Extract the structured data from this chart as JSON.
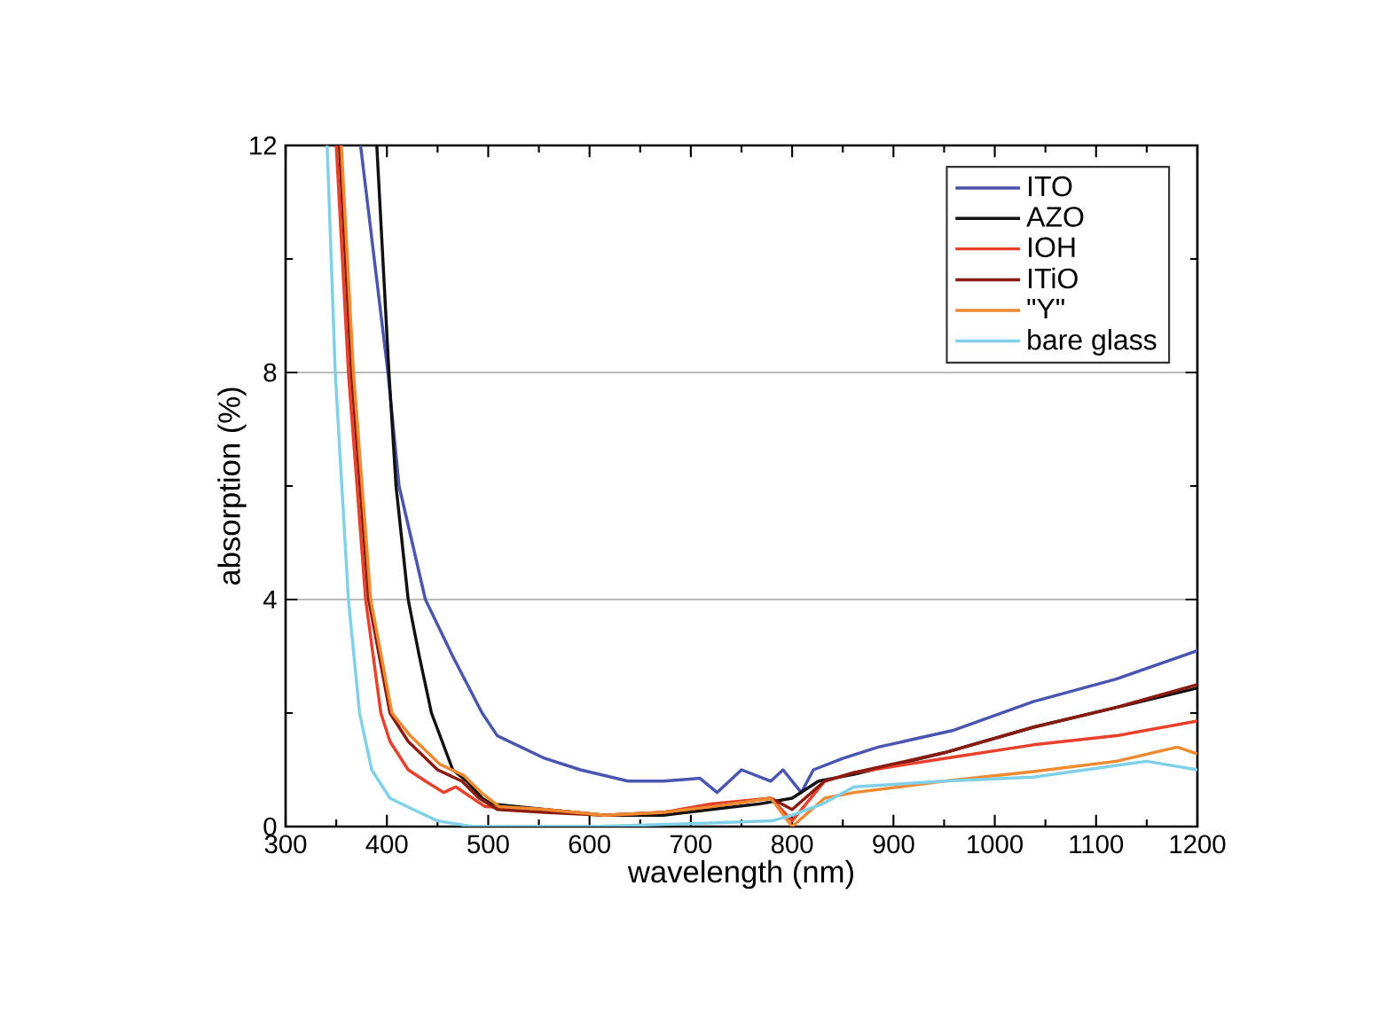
{
  "chart_data": {
    "type": "line",
    "xlabel": "wavelength (nm)",
    "ylabel": "absorption (%)",
    "xlim": [
      300,
      1200
    ],
    "ylim": [
      0,
      12
    ],
    "xticks": [
      300,
      400,
      500,
      600,
      700,
      800,
      900,
      1000,
      1100,
      1200
    ],
    "yticks": [
      0,
      4,
      8,
      12
    ],
    "grid": "y",
    "legend": "top right",
    "line_style": "solid",
    "series": [
      {
        "name": "ITO",
        "color": "#4a55b0",
        "x": [
          374,
          401,
          412,
          438,
          465,
          494,
          509,
          556,
          591,
          638,
          673,
          709,
          726,
          750,
          779,
          791,
          809,
          821,
          850,
          885,
          960,
          1038,
          1120,
          1200
        ],
        "values": [
          12,
          8,
          6,
          4,
          3,
          2,
          1.6,
          1.2,
          1.0,
          0.8,
          0.8,
          0.85,
          0.6,
          1.0,
          0.8,
          1.0,
          0.6,
          1.0,
          1.2,
          1.4,
          1.7,
          2.2,
          2.6,
          3.1
        ]
      },
      {
        "name": "AZO",
        "color": "#111111",
        "x": [
          390,
          402,
          409,
          421,
          432,
          444,
          465,
          479,
          494,
          503,
          556,
          615,
          673,
          720,
          768,
          800,
          826,
          861,
          950,
          1038,
          1120,
          1200
        ],
        "values": [
          12,
          8,
          6,
          4,
          3,
          2,
          1,
          0.8,
          0.5,
          0.4,
          0.3,
          0.2,
          0.2,
          0.3,
          0.4,
          0.5,
          0.8,
          0.92,
          1.3,
          1.75,
          2.1,
          2.44
        ]
      },
      {
        "name": "IOH",
        "color": "#e8402a",
        "x": [
          350,
          362,
          379,
          394,
          403,
          421,
          438,
          456,
          468,
          497,
          556,
          615,
          673,
          720,
          779,
          800,
          832,
          861,
          950,
          1038,
          1120,
          1200
        ],
        "values": [
          12,
          8,
          4,
          2,
          1.5,
          1.0,
          0.8,
          0.6,
          0.7,
          0.35,
          0.3,
          0.2,
          0.25,
          0.4,
          0.5,
          0.1,
          0.8,
          0.95,
          1.2,
          1.44,
          1.6,
          1.86
        ]
      },
      {
        "name": "ITiO",
        "color": "#8b1a10",
        "x": [
          353,
          365,
          382,
          403,
          421,
          450,
          474,
          491,
          509,
          556,
          615,
          673,
          720,
          779,
          800,
          832,
          861,
          950,
          1038,
          1120,
          1200
        ],
        "values": [
          12,
          8,
          4,
          2,
          1.5,
          1.0,
          0.8,
          0.5,
          0.3,
          0.25,
          0.2,
          0.25,
          0.35,
          0.5,
          0.3,
          0.8,
          0.95,
          1.3,
          1.75,
          2.1,
          2.5
        ]
      },
      {
        "name": "\"Y\"",
        "color": "#f08a30",
        "x": [
          355,
          367,
          384,
          405,
          423,
          452,
          476,
          493,
          511,
          556,
          615,
          673,
          720,
          779,
          800,
          832,
          861,
          950,
          1038,
          1120,
          1180,
          1200
        ],
        "values": [
          12,
          8,
          4,
          2,
          1.6,
          1.1,
          0.9,
          0.6,
          0.35,
          0.3,
          0.2,
          0.25,
          0.35,
          0.5,
          0.0,
          0.5,
          0.6,
          0.8,
          0.97,
          1.15,
          1.4,
          1.28
        ]
      },
      {
        "name": "bare glass",
        "color": "#7fd0e8",
        "x": [
          341,
          349,
          362,
          373,
          385,
          403,
          426,
          450,
          485,
          600,
          700,
          780,
          800,
          830,
          861,
          950,
          1038,
          1150,
          1200
        ],
        "values": [
          12,
          8,
          4,
          2,
          1,
          0.5,
          0.3,
          0.1,
          0,
          0,
          0.05,
          0.1,
          0.2,
          0.4,
          0.7,
          0.8,
          0.87,
          1.15,
          1.0
        ]
      }
    ]
  }
}
